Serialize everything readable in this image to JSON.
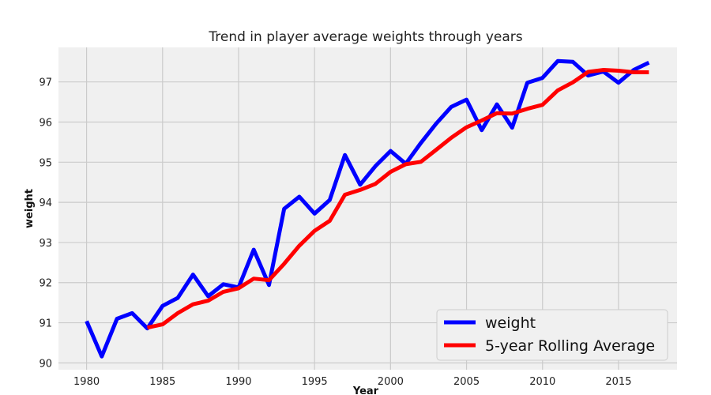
{
  "chart_data": {
    "type": "line",
    "title": "Trend in player average weights through years",
    "xlabel": "Year",
    "ylabel": "weight",
    "xlim": [
      1978.15,
      2018.85
    ],
    "ylim": [
      89.83,
      97.86
    ],
    "xticks": [
      1980,
      1985,
      1990,
      1995,
      2000,
      2005,
      2010,
      2015
    ],
    "yticks": [
      90,
      91,
      92,
      93,
      94,
      95,
      96,
      97
    ],
    "grid": true,
    "legend": "bottom-right",
    "series": [
      {
        "name": "weight",
        "color": "#0000ff",
        "x": [
          1980,
          1981,
          1982,
          1983,
          1984,
          1985,
          1986,
          1987,
          1988,
          1989,
          1990,
          1991,
          1992,
          1993,
          1994,
          1995,
          1996,
          1997,
          1998,
          1999,
          2000,
          2001,
          2002,
          2003,
          2004,
          2005,
          2006,
          2007,
          2008,
          2009,
          2010,
          2011,
          2012,
          2013,
          2014,
          2015,
          2016,
          2017
        ],
        "values": [
          91.04,
          90.16,
          91.1,
          91.24,
          90.86,
          91.42,
          91.62,
          92.2,
          91.66,
          91.96,
          91.88,
          92.82,
          91.94,
          93.84,
          94.14,
          93.72,
          94.06,
          95.18,
          94.44,
          94.9,
          95.28,
          94.96,
          95.48,
          95.96,
          96.38,
          96.56,
          95.8,
          96.44,
          95.86,
          96.98,
          97.1,
          97.52,
          97.5,
          97.16,
          97.26,
          96.98,
          97.3,
          97.48
        ]
      },
      {
        "name": "5-year Rolling Average",
        "color": "#ff0000",
        "x": [
          1984,
          1985,
          1986,
          1987,
          1988,
          1989,
          1990,
          1991,
          1992,
          1993,
          1994,
          1995,
          1996,
          1997,
          1998,
          1999,
          2000,
          2001,
          2002,
          2003,
          2004,
          2005,
          2006,
          2007,
          2008,
          2009,
          2010,
          2011,
          2012,
          2013,
          2014,
          2015,
          2016,
          2017
        ],
        "values": [
          90.88,
          90.96,
          91.24,
          91.46,
          91.55,
          91.77,
          91.86,
          92.1,
          92.06,
          92.47,
          92.92,
          93.29,
          93.54,
          94.19,
          94.31,
          94.46,
          94.76,
          94.95,
          95.01,
          95.31,
          95.61,
          95.87,
          96.04,
          96.22,
          96.21,
          96.33,
          96.43,
          96.79,
          96.99,
          97.25,
          97.3,
          97.28,
          97.24,
          97.24
        ]
      }
    ]
  }
}
